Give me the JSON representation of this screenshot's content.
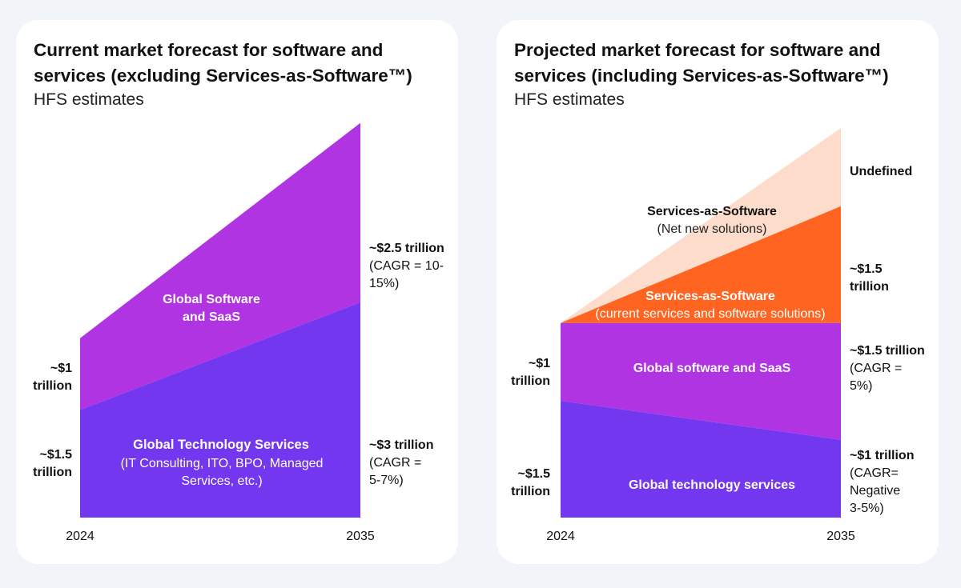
{
  "colors": {
    "background": "#f1f4f8",
    "card": "#ffffff",
    "tech_services": "#7337f0",
    "software_saas": "#b134e3",
    "sas_current": "#ff6420",
    "sas_net_new": "#fddccb",
    "text": "#111111"
  },
  "left_panel": {
    "title": "Current market forecast for software and services (excluding Services-as-Software™)",
    "subtitle": "HFS estimates",
    "x_start": "2024",
    "x_end": "2035",
    "top_area_label": [
      "Global Software",
      "and SaaS"
    ],
    "bottom_area_label": "Global Technology Services",
    "bottom_area_sublabel": [
      "(IT Consulting, ITO, BPO, Managed",
      "Services, etc.)"
    ],
    "left_top_value": [
      "~$1",
      "trillion"
    ],
    "left_bottom_value": [
      "~$1.5",
      "trillion"
    ],
    "right_top_value": "~$2.5 trillion",
    "right_top_note": [
      "(CAGR = 10-",
      "15%)"
    ],
    "right_bottom_value": "~$3 trillion",
    "right_bottom_note": [
      "(CAGR =",
      "5-7%)"
    ]
  },
  "right_panel": {
    "title": "Projected market forecast for software and services (including Services-as-Software™)",
    "subtitle": "HFS estimates",
    "x_start": "2024",
    "x_end": "2035",
    "net_new_label": "Services-as-Software",
    "net_new_sublabel": "(Net new solutions)",
    "current_label": "Services-as-Software",
    "current_sublabel": "(current services and software solutions)",
    "software_label": "Global software and SaaS",
    "tech_label": "Global technology services",
    "left_top_value": [
      "~$1",
      "trillion"
    ],
    "left_bottom_value": [
      "~$1.5",
      "trillion"
    ],
    "right_undefined": "Undefined",
    "right_sas_value": [
      "~$1.5",
      "trillion"
    ],
    "right_software_value": "~$1.5 trillion",
    "right_software_note": [
      "(CAGR =",
      "5%)"
    ],
    "right_tech_value": "~$1 trillion",
    "right_tech_note": [
      "(CAGR=",
      "Negative",
      "3-5%)"
    ]
  },
  "chart_data": [
    {
      "type": "area",
      "title": "Current market forecast for software and services (excluding Services-as-Software™)",
      "subtitle": "HFS estimates",
      "x": [
        "2024",
        "2035"
      ],
      "series": [
        {
          "name": "Global Technology Services",
          "values": [
            1.5,
            3.0
          ],
          "unit": "trillion USD"
        },
        {
          "name": "Global Software and SaaS",
          "values": [
            1.0,
            2.5
          ],
          "unit": "trillion USD"
        }
      ],
      "stacked": true,
      "annotations": [
        "CAGR = 10-15%",
        "CAGR = 5-7%"
      ],
      "grid": false
    },
    {
      "type": "area",
      "title": "Projected market forecast for software and services (including Services-as-Software™)",
      "subtitle": "HFS estimates",
      "x": [
        "2024",
        "2035"
      ],
      "series": [
        {
          "name": "Global technology services",
          "values": [
            1.5,
            1.0
          ],
          "unit": "trillion USD"
        },
        {
          "name": "Global software and SaaS",
          "values": [
            1.0,
            1.5
          ],
          "unit": "trillion USD"
        },
        {
          "name": "Services-as-Software (current services and software solutions)",
          "values": [
            0,
            1.5
          ],
          "unit": "trillion USD"
        },
        {
          "name": "Services-as-Software (Net new solutions)",
          "values": [
            0,
            null
          ],
          "note": "Undefined"
        }
      ],
      "stacked": true,
      "annotations": [
        "CAGR = 5%",
        "CAGR= Negative 3-5%"
      ],
      "grid": false
    }
  ]
}
